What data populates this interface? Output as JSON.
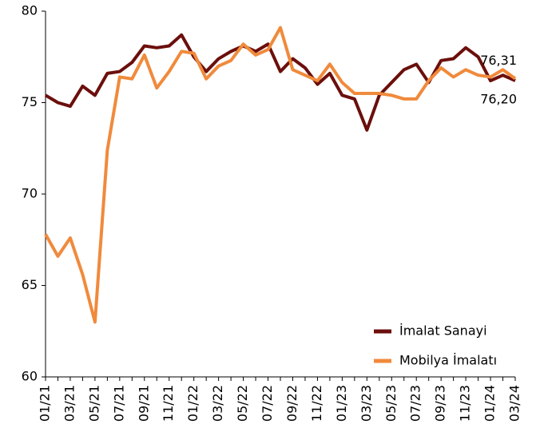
{
  "chart_data": {
    "type": "line",
    "categories": [
      "01/21",
      null,
      "03/21",
      null,
      "05/21",
      null,
      "07/21",
      null,
      "09/21",
      null,
      "11/21",
      null,
      "01/22",
      null,
      "03/22",
      null,
      "05/22",
      null,
      "07/22",
      null,
      "09/22",
      null,
      "11/22",
      null,
      "01/23",
      null,
      "03/23",
      null,
      "05/23",
      null,
      "07/23",
      null,
      "09/23",
      null,
      "11/23",
      null,
      "01/24",
      null,
      "03/24"
    ],
    "series": [
      {
        "name": "İmalat Sanayi",
        "color": "#6b0f0c",
        "values": [
          75.4,
          75.0,
          74.8,
          75.9,
          75.4,
          76.6,
          76.7,
          77.2,
          78.1,
          78.0,
          78.1,
          78.7,
          77.5,
          76.7,
          77.4,
          77.8,
          78.1,
          77.8,
          78.2,
          76.7,
          77.4,
          76.9,
          76.0,
          76.6,
          75.4,
          75.2,
          73.5,
          75.4,
          76.1,
          76.8,
          77.1,
          76.1,
          77.3,
          77.4,
          78.0,
          77.5,
          76.2,
          76.5,
          76.2
        ],
        "value_labels": [
          null,
          null,
          null,
          null,
          null,
          null,
          null,
          null,
          null,
          null,
          null,
          null,
          null,
          null,
          null,
          null,
          null,
          null,
          null,
          null,
          null,
          null,
          null,
          null,
          null,
          null,
          null,
          null,
          null,
          null,
          null,
          null,
          null,
          null,
          null,
          null,
          null,
          null,
          "76,20"
        ]
      },
      {
        "name": "Mobilya İmalatı",
        "color": "#f08a3c",
        "values": [
          67.8,
          66.6,
          67.6,
          65.6,
          63.0,
          72.4,
          76.4,
          76.3,
          77.6,
          75.8,
          76.7,
          77.8,
          77.7,
          76.3,
          77.0,
          77.3,
          78.2,
          77.6,
          77.9,
          79.1,
          76.8,
          76.5,
          76.2,
          77.1,
          76.1,
          75.5,
          75.5,
          75.5,
          75.4,
          75.2,
          75.2,
          76.2,
          76.9,
          76.4,
          76.8,
          76.5,
          76.4,
          76.8,
          76.31
        ],
        "value_labels": [
          null,
          null,
          null,
          null,
          null,
          null,
          null,
          null,
          null,
          null,
          null,
          null,
          null,
          null,
          null,
          null,
          null,
          null,
          null,
          null,
          null,
          null,
          null,
          null,
          null,
          null,
          null,
          null,
          null,
          null,
          null,
          null,
          null,
          null,
          null,
          null,
          null,
          null,
          "76,31"
        ]
      }
    ],
    "ylim": [
      60,
      80
    ],
    "yticks": [
      60,
      65,
      70,
      75,
      80
    ],
    "legend": "lower right"
  }
}
